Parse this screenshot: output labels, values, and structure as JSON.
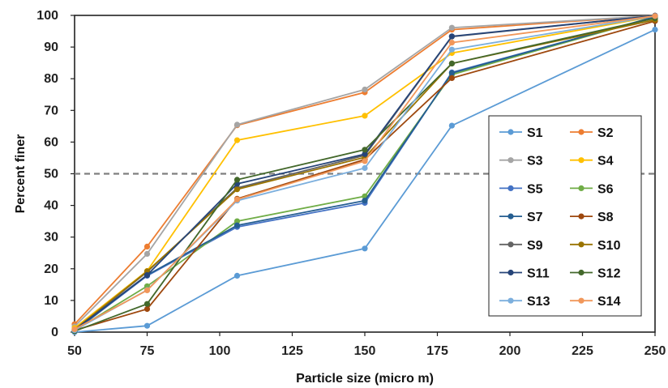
{
  "chart_data": {
    "type": "line",
    "title": "",
    "xlabel": "Particle size (micro m)",
    "ylabel": "Percent finer",
    "xlim": [
      50,
      250
    ],
    "ylim": [
      0,
      100
    ],
    "xticks": [
      50,
      75,
      100,
      125,
      150,
      175,
      200,
      225,
      250
    ],
    "yticks": [
      0,
      10,
      20,
      30,
      40,
      50,
      60,
      70,
      80,
      90,
      100
    ],
    "grid": false,
    "legend_position": "right",
    "reference_line": {
      "y": 50,
      "style": "dashed",
      "color": "#7f7f7f"
    },
    "x": [
      50,
      75,
      106,
      150,
      180,
      250
    ],
    "series": [
      {
        "name": "S1",
        "color": "#5B9BD5",
        "values": [
          0.0,
          2.0,
          17.8,
          26.4,
          65.2,
          95.5
        ]
      },
      {
        "name": "S2",
        "color": "#ED7D31",
        "values": [
          2.5,
          27.0,
          65.3,
          75.7,
          95.5,
          99.9
        ]
      },
      {
        "name": "S3",
        "color": "#A5A5A5",
        "values": [
          1.8,
          24.7,
          65.5,
          76.6,
          96.1,
          99.9
        ]
      },
      {
        "name": "S4",
        "color": "#FFC000",
        "values": [
          1.3,
          19.3,
          60.6,
          68.3,
          88.1,
          99.7
        ]
      },
      {
        "name": "S5",
        "color": "#4472C4",
        "values": [
          0.3,
          17.8,
          33.2,
          40.8,
          82.0,
          99.5
        ]
      },
      {
        "name": "S6",
        "color": "#70AD47",
        "values": [
          0.5,
          14.5,
          35.0,
          42.9,
          81.3,
          99.5
        ]
      },
      {
        "name": "S7",
        "color": "#255E91",
        "values": [
          0.4,
          18.0,
          33.7,
          41.5,
          81.8,
          99.6
        ]
      },
      {
        "name": "S8",
        "color": "#9E480E",
        "values": [
          0.6,
          7.3,
          42.1,
          54.5,
          80.2,
          98.2
        ]
      },
      {
        "name": "S9",
        "color": "#636363",
        "values": [
          0.7,
          19.0,
          45.5,
          55.8,
          93.3,
          99.9
        ]
      },
      {
        "name": "S10",
        "color": "#997300",
        "values": [
          0.8,
          19.2,
          45.1,
          55.2,
          84.8,
          98.6
        ]
      },
      {
        "name": "S11",
        "color": "#264478",
        "values": [
          0.7,
          18.0,
          46.8,
          56.2,
          93.4,
          99.9
        ]
      },
      {
        "name": "S12",
        "color": "#43682B",
        "values": [
          0.3,
          8.9,
          48.1,
          57.6,
          84.8,
          99.1
        ]
      },
      {
        "name": "S13",
        "color": "#7CAFDD",
        "values": [
          0.6,
          13.3,
          41.5,
          51.8,
          89.2,
          99.8
        ]
      },
      {
        "name": "S14",
        "color": "#F1975A",
        "values": [
          0.9,
          13.2,
          41.9,
          54.0,
          91.4,
          99.8
        ]
      }
    ]
  }
}
